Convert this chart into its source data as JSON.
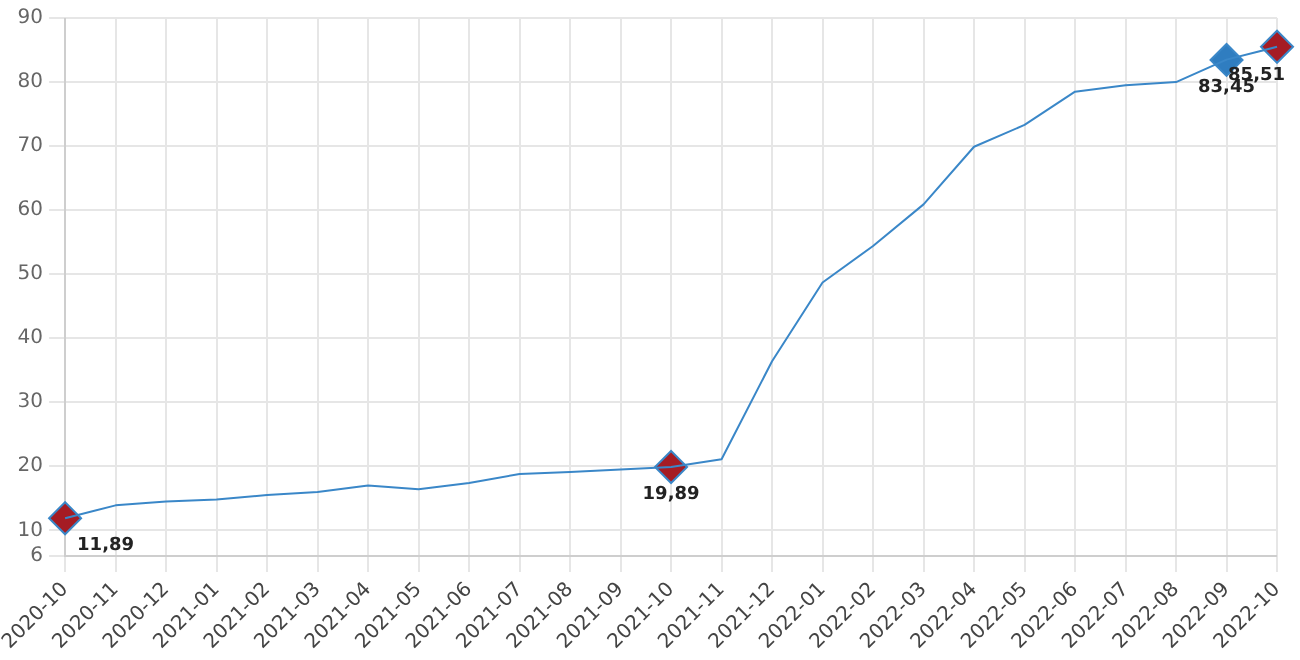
{
  "chart_data": {
    "type": "line",
    "categories": [
      "2020-10",
      "2020-11",
      "2020-12",
      "2021-01",
      "2021-02",
      "2021-03",
      "2021-04",
      "2021-05",
      "2021-06",
      "2021-07",
      "2021-08",
      "2021-09",
      "2021-10",
      "2021-11",
      "2021-12",
      "2022-01",
      "2022-02",
      "2022-03",
      "2022-04",
      "2022-05",
      "2022-06",
      "2022-07",
      "2022-08",
      "2022-09",
      "2022-10"
    ],
    "series": [
      {
        "color": "#3a87c8",
        "marker": "none",
        "values": [
          11.9,
          13.9,
          14.5,
          14.8,
          15.5,
          16.0,
          17.0,
          16.4,
          17.4,
          18.8,
          19.1,
          19.5,
          19.9,
          21.1,
          36.4,
          48.7,
          54.4,
          60.9,
          69.9,
          73.3,
          78.5,
          79.5,
          80.0,
          83.5,
          85.5
        ]
      },
      {
        "type": "scatter",
        "marker": "diamond",
        "values": [
          11.89,
          null,
          null,
          null,
          null,
          null,
          null,
          null,
          null,
          null,
          null,
          null,
          19.89,
          null,
          null,
          null,
          null,
          null,
          null,
          null,
          null,
          null,
          null,
          83.45,
          85.51
        ],
        "colors": [
          "#a51c24",
          null,
          null,
          null,
          null,
          null,
          null,
          null,
          null,
          null,
          null,
          null,
          "#a51c24",
          null,
          null,
          null,
          null,
          null,
          null,
          null,
          null,
          null,
          null,
          "#2f7dc0",
          "#a51c24"
        ],
        "value_labels": [
          "11,89",
          null,
          null,
          null,
          null,
          null,
          null,
          null,
          null,
          null,
          null,
          null,
          "19,89",
          null,
          null,
          null,
          null,
          null,
          null,
          null,
          null,
          null,
          null,
          "83,45",
          "85,51"
        ]
      }
    ],
    "ylim": [
      6,
      90
    ],
    "yticks": [
      6,
      10,
      20,
      30,
      40,
      50,
      60,
      70,
      80,
      90
    ],
    "grid": true,
    "legend": false,
    "line_style": "solid"
  }
}
